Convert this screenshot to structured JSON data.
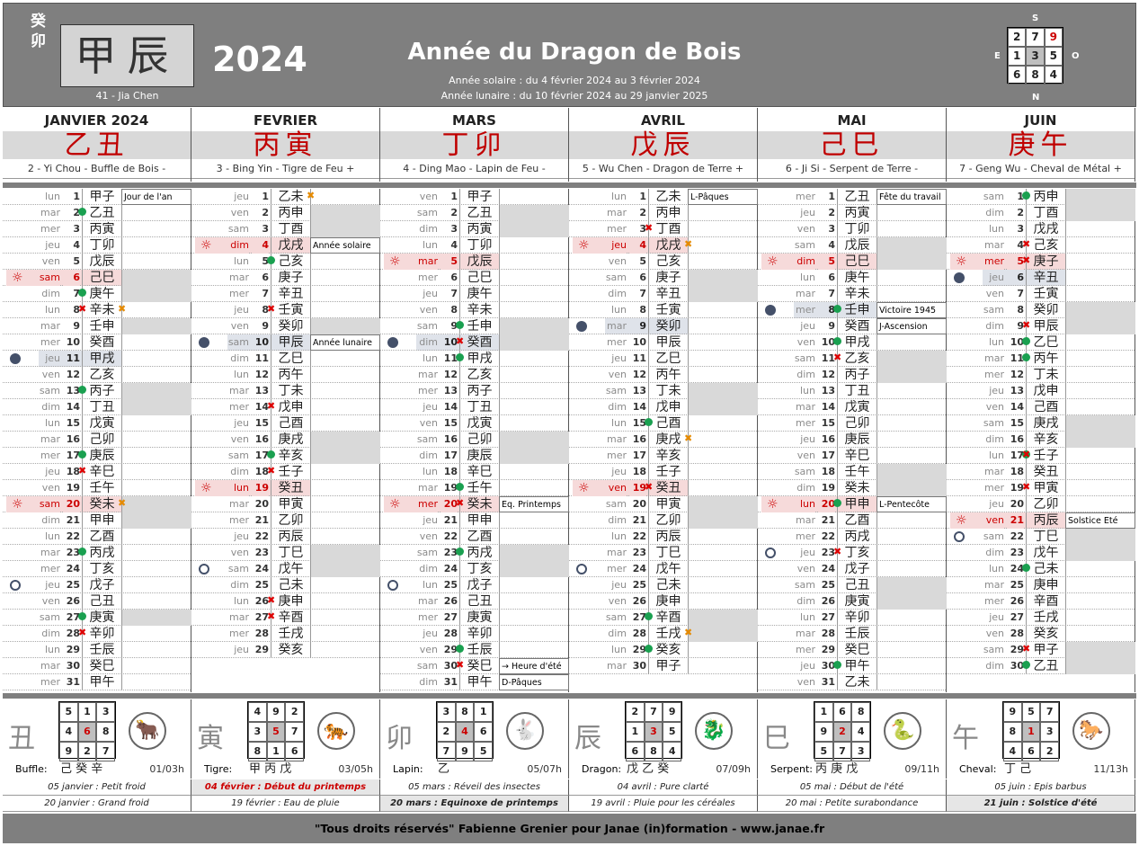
{
  "header": {
    "year_stem": "癸卯",
    "main_ganzhi": "甲辰",
    "main_label": "41 - Jia Chen",
    "year": "2024",
    "title": "Année du Dragon de Bois",
    "solar": "Année solaire : du 4 février 2024 au 3 février 2024",
    "lunar": "Année lunaire : du 10 février 2024 au 29 janvier 2025",
    "compass": {
      "s": "S",
      "n": "N",
      "e": "E",
      "o": "O",
      "grid": [
        "2",
        "7",
        "9",
        "1",
        "3",
        "5",
        "6",
        "8",
        "4"
      ]
    }
  },
  "months": [
    {
      "name": "JANVIER 2024",
      "gz": "乙丑",
      "desc": "2 - Yi Chou - Buffle de Bois -"
    },
    {
      "name": "FEVRIER",
      "gz": "丙寅",
      "desc": "3 - Bing Yin - Tigre de Feu +"
    },
    {
      "name": "MARS",
      "gz": "丁卯",
      "desc": "4 - Ding Mao - Lapin de Feu -"
    },
    {
      "name": "AVRIL",
      "gz": "戊辰",
      "desc": "5 - Wu Chen - Dragon de Terre +"
    },
    {
      "name": "MAI",
      "gz": "己巳",
      "desc": "6 - Ji Si - Serpent de Terre -"
    },
    {
      "name": "JUIN",
      "gz": "庚午",
      "desc": "7 - Geng Wu - Cheval de Métal +"
    }
  ],
  "days": [
    [
      [
        "lun",
        "1",
        "甲子",
        "Jour de l'an"
      ],
      [
        "mar",
        "2",
        "乙丑",
        ""
      ],
      [
        "mer",
        "3",
        "丙寅",
        ""
      ],
      [
        "jeu",
        "4",
        "丁卯",
        ""
      ],
      [
        "ven",
        "5",
        "戊辰",
        ""
      ],
      [
        "sam",
        "6",
        "己巳",
        ""
      ],
      [
        "dim",
        "7",
        "庚午",
        ""
      ],
      [
        "lun",
        "8",
        "辛未",
        ""
      ],
      [
        "mar",
        "9",
        "壬申",
        ""
      ],
      [
        "mer",
        "10",
        "癸酉",
        ""
      ],
      [
        "jeu",
        "11",
        "甲戌",
        ""
      ],
      [
        "ven",
        "12",
        "乙亥",
        ""
      ],
      [
        "sam",
        "13",
        "丙子",
        ""
      ],
      [
        "dim",
        "14",
        "丁丑",
        ""
      ],
      [
        "lun",
        "15",
        "戊寅",
        ""
      ],
      [
        "mar",
        "16",
        "己卯",
        ""
      ],
      [
        "mer",
        "17",
        "庚辰",
        ""
      ],
      [
        "jeu",
        "18",
        "辛巳",
        ""
      ],
      [
        "ven",
        "19",
        "壬午",
        ""
      ],
      [
        "sam",
        "20",
        "癸未",
        ""
      ],
      [
        "dim",
        "21",
        "甲申",
        ""
      ],
      [
        "lun",
        "22",
        "乙酉",
        ""
      ],
      [
        "mar",
        "23",
        "丙戌",
        ""
      ],
      [
        "mer",
        "24",
        "丁亥",
        ""
      ],
      [
        "jeu",
        "25",
        "戊子",
        ""
      ],
      [
        "ven",
        "26",
        "己丑",
        ""
      ],
      [
        "sam",
        "27",
        "庚寅",
        ""
      ],
      [
        "dim",
        "28",
        "辛卯",
        ""
      ],
      [
        "lun",
        "29",
        "壬辰",
        ""
      ],
      [
        "mar",
        "30",
        "癸巳",
        ""
      ],
      [
        "mer",
        "31",
        "甲午",
        ""
      ]
    ],
    [
      [
        "jeu",
        "1",
        "乙未",
        ""
      ],
      [
        "ven",
        "2",
        "丙申",
        ""
      ],
      [
        "sam",
        "3",
        "丁酉",
        ""
      ],
      [
        "dim",
        "4",
        "戊戌",
        "Année solaire"
      ],
      [
        "lun",
        "5",
        "己亥",
        ""
      ],
      [
        "mar",
        "6",
        "庚子",
        ""
      ],
      [
        "mer",
        "7",
        "辛丑",
        ""
      ],
      [
        "jeu",
        "8",
        "壬寅",
        ""
      ],
      [
        "ven",
        "9",
        "癸卯",
        ""
      ],
      [
        "sam",
        "10",
        "甲辰",
        "Année lunaire"
      ],
      [
        "dim",
        "11",
        "乙巳",
        ""
      ],
      [
        "lun",
        "12",
        "丙午",
        ""
      ],
      [
        "mar",
        "13",
        "丁未",
        ""
      ],
      [
        "mer",
        "14",
        "戊申",
        ""
      ],
      [
        "jeu",
        "15",
        "己酉",
        ""
      ],
      [
        "ven",
        "16",
        "庚戌",
        ""
      ],
      [
        "sam",
        "17",
        "辛亥",
        ""
      ],
      [
        "dim",
        "18",
        "壬子",
        ""
      ],
      [
        "lun",
        "19",
        "癸丑",
        ""
      ],
      [
        "mar",
        "20",
        "甲寅",
        ""
      ],
      [
        "mer",
        "21",
        "乙卯",
        ""
      ],
      [
        "jeu",
        "22",
        "丙辰",
        ""
      ],
      [
        "ven",
        "23",
        "丁巳",
        ""
      ],
      [
        "sam",
        "24",
        "戊午",
        ""
      ],
      [
        "dim",
        "25",
        "己未",
        ""
      ],
      [
        "lun",
        "26",
        "庚申",
        ""
      ],
      [
        "mar",
        "27",
        "辛酉",
        ""
      ],
      [
        "mer",
        "28",
        "壬戌",
        ""
      ],
      [
        "jeu",
        "29",
        "癸亥",
        ""
      ]
    ],
    [
      [
        "ven",
        "1",
        "甲子",
        ""
      ],
      [
        "sam",
        "2",
        "乙丑",
        ""
      ],
      [
        "dim",
        "3",
        "丙寅",
        ""
      ],
      [
        "lun",
        "4",
        "丁卯",
        ""
      ],
      [
        "mar",
        "5",
        "戊辰",
        ""
      ],
      [
        "mer",
        "6",
        "己巳",
        ""
      ],
      [
        "jeu",
        "7",
        "庚午",
        ""
      ],
      [
        "ven",
        "8",
        "辛未",
        ""
      ],
      [
        "sam",
        "9",
        "壬申",
        ""
      ],
      [
        "dim",
        "10",
        "癸酉",
        ""
      ],
      [
        "lun",
        "11",
        "甲戌",
        ""
      ],
      [
        "mar",
        "12",
        "乙亥",
        ""
      ],
      [
        "mer",
        "13",
        "丙子",
        ""
      ],
      [
        "jeu",
        "14",
        "丁丑",
        ""
      ],
      [
        "ven",
        "15",
        "戊寅",
        ""
      ],
      [
        "sam",
        "16",
        "己卯",
        ""
      ],
      [
        "dim",
        "17",
        "庚辰",
        ""
      ],
      [
        "lun",
        "18",
        "辛巳",
        ""
      ],
      [
        "mar",
        "19",
        "壬午",
        ""
      ],
      [
        "mer",
        "20",
        "癸未",
        "Eq. Printemps"
      ],
      [
        "jeu",
        "21",
        "甲申",
        ""
      ],
      [
        "ven",
        "22",
        "乙酉",
        ""
      ],
      [
        "sam",
        "23",
        "丙戌",
        ""
      ],
      [
        "dim",
        "24",
        "丁亥",
        ""
      ],
      [
        "lun",
        "25",
        "戊子",
        ""
      ],
      [
        "mar",
        "26",
        "己丑",
        ""
      ],
      [
        "mer",
        "27",
        "庚寅",
        ""
      ],
      [
        "jeu",
        "28",
        "辛卯",
        ""
      ],
      [
        "ven",
        "29",
        "壬辰",
        ""
      ],
      [
        "sam",
        "30",
        "癸巳",
        "→ Heure d'été"
      ],
      [
        "dim",
        "31",
        "甲午",
        "D-Pâques"
      ]
    ],
    [
      [
        "lun",
        "1",
        "乙未",
        "L-Pâques"
      ],
      [
        "mar",
        "2",
        "丙申",
        ""
      ],
      [
        "mer",
        "3",
        "丁酉",
        ""
      ],
      [
        "jeu",
        "4",
        "戊戌",
        ""
      ],
      [
        "ven",
        "5",
        "己亥",
        ""
      ],
      [
        "sam",
        "6",
        "庚子",
        ""
      ],
      [
        "dim",
        "7",
        "辛丑",
        ""
      ],
      [
        "lun",
        "8",
        "壬寅",
        ""
      ],
      [
        "mar",
        "9",
        "癸卯",
        ""
      ],
      [
        "mer",
        "10",
        "甲辰",
        ""
      ],
      [
        "jeu",
        "11",
        "乙巳",
        ""
      ],
      [
        "ven",
        "12",
        "丙午",
        ""
      ],
      [
        "sam",
        "13",
        "丁未",
        ""
      ],
      [
        "dim",
        "14",
        "戊申",
        ""
      ],
      [
        "lun",
        "15",
        "己酉",
        ""
      ],
      [
        "mar",
        "16",
        "庚戌",
        ""
      ],
      [
        "mer",
        "17",
        "辛亥",
        ""
      ],
      [
        "jeu",
        "18",
        "壬子",
        ""
      ],
      [
        "ven",
        "19",
        "癸丑",
        ""
      ],
      [
        "sam",
        "20",
        "甲寅",
        ""
      ],
      [
        "dim",
        "21",
        "乙卯",
        ""
      ],
      [
        "lun",
        "22",
        "丙辰",
        ""
      ],
      [
        "mar",
        "23",
        "丁巳",
        ""
      ],
      [
        "mer",
        "24",
        "戊午",
        ""
      ],
      [
        "jeu",
        "25",
        "己未",
        ""
      ],
      [
        "ven",
        "26",
        "庚申",
        ""
      ],
      [
        "sam",
        "27",
        "辛酉",
        ""
      ],
      [
        "dim",
        "28",
        "壬戌",
        ""
      ],
      [
        "lun",
        "29",
        "癸亥",
        ""
      ],
      [
        "mar",
        "30",
        "甲子",
        ""
      ]
    ],
    [
      [
        "mer",
        "1",
        "乙丑",
        "Fête du travail"
      ],
      [
        "jeu",
        "2",
        "丙寅",
        ""
      ],
      [
        "ven",
        "3",
        "丁卯",
        ""
      ],
      [
        "sam",
        "4",
        "戊辰",
        ""
      ],
      [
        "dim",
        "5",
        "己巳",
        ""
      ],
      [
        "lun",
        "6",
        "庚午",
        ""
      ],
      [
        "mar",
        "7",
        "辛未",
        ""
      ],
      [
        "mer",
        "8",
        "壬申",
        "Victoire 1945"
      ],
      [
        "jeu",
        "9",
        "癸酉",
        "J-Ascension"
      ],
      [
        "ven",
        "10",
        "甲戌",
        ""
      ],
      [
        "sam",
        "11",
        "乙亥",
        ""
      ],
      [
        "dim",
        "12",
        "丙子",
        ""
      ],
      [
        "lun",
        "13",
        "丁丑",
        ""
      ],
      [
        "mar",
        "14",
        "戊寅",
        ""
      ],
      [
        "mer",
        "15",
        "己卯",
        ""
      ],
      [
        "jeu",
        "16",
        "庚辰",
        ""
      ],
      [
        "ven",
        "17",
        "辛巳",
        ""
      ],
      [
        "sam",
        "18",
        "壬午",
        ""
      ],
      [
        "dim",
        "19",
        "癸未",
        ""
      ],
      [
        "lun",
        "20",
        "甲申",
        "L-Pentecôte"
      ],
      [
        "mar",
        "21",
        "乙酉",
        ""
      ],
      [
        "mer",
        "22",
        "丙戌",
        ""
      ],
      [
        "jeu",
        "23",
        "丁亥",
        ""
      ],
      [
        "ven",
        "24",
        "戊子",
        ""
      ],
      [
        "sam",
        "25",
        "己丑",
        ""
      ],
      [
        "dim",
        "26",
        "庚寅",
        ""
      ],
      [
        "lun",
        "27",
        "辛卯",
        ""
      ],
      [
        "mar",
        "28",
        "壬辰",
        ""
      ],
      [
        "mer",
        "29",
        "癸巳",
        ""
      ],
      [
        "jeu",
        "30",
        "甲午",
        ""
      ],
      [
        "ven",
        "31",
        "乙未",
        ""
      ]
    ],
    [
      [
        "sam",
        "1",
        "丙申",
        ""
      ],
      [
        "dim",
        "2",
        "丁酉",
        ""
      ],
      [
        "lun",
        "3",
        "戊戌",
        ""
      ],
      [
        "mar",
        "4",
        "己亥",
        ""
      ],
      [
        "mer",
        "5",
        "庚子",
        ""
      ],
      [
        "jeu",
        "6",
        "辛丑",
        ""
      ],
      [
        "ven",
        "7",
        "壬寅",
        ""
      ],
      [
        "sam",
        "8",
        "癸卯",
        ""
      ],
      [
        "dim",
        "9",
        "甲辰",
        ""
      ],
      [
        "lun",
        "10",
        "乙巳",
        ""
      ],
      [
        "mar",
        "11",
        "丙午",
        ""
      ],
      [
        "mer",
        "12",
        "丁未",
        ""
      ],
      [
        "jeu",
        "13",
        "戊申",
        ""
      ],
      [
        "ven",
        "14",
        "己酉",
        ""
      ],
      [
        "sam",
        "15",
        "庚戌",
        ""
      ],
      [
        "dim",
        "16",
        "辛亥",
        ""
      ],
      [
        "lun",
        "17",
        "壬子",
        ""
      ],
      [
        "mar",
        "18",
        "癸丑",
        ""
      ],
      [
        "mer",
        "19",
        "甲寅",
        ""
      ],
      [
        "jeu",
        "20",
        "乙卯",
        ""
      ],
      [
        "ven",
        "21",
        "丙辰",
        "Solstice Eté"
      ],
      [
        "sam",
        "22",
        "丁巳",
        ""
      ],
      [
        "dim",
        "23",
        "戊午",
        ""
      ],
      [
        "lun",
        "24",
        "己未",
        ""
      ],
      [
        "mar",
        "25",
        "庚申",
        ""
      ],
      [
        "mer",
        "26",
        "辛酉",
        ""
      ],
      [
        "jeu",
        "27",
        "壬戌",
        ""
      ],
      [
        "ven",
        "28",
        "癸亥",
        ""
      ],
      [
        "sam",
        "29",
        "甲子",
        ""
      ],
      [
        "dim",
        "30",
        "乙丑",
        ""
      ]
    ]
  ],
  "bottom": [
    {
      "ch": "丑",
      "grid": [
        "5",
        "1",
        "3",
        "4",
        "6",
        "8",
        "9",
        "2",
        "7"
      ],
      "red": 4,
      "animal_label": "Buffle:",
      "stems": "己 癸 辛",
      "time": "01/03h"
    },
    {
      "ch": "寅",
      "grid": [
        "4",
        "9",
        "2",
        "3",
        "5",
        "7",
        "8",
        "1",
        "6"
      ],
      "red": 4,
      "animal_label": "Tigre:",
      "stems": "甲 丙 戊",
      "time": "03/05h"
    },
    {
      "ch": "卯",
      "grid": [
        "3",
        "8",
        "1",
        "2",
        "4",
        "6",
        "7",
        "9",
        "5"
      ],
      "red": 4,
      "animal_label": "Lapin:",
      "stems": "乙",
      "time": "05/07h"
    },
    {
      "ch": "辰",
      "grid": [
        "2",
        "7",
        "9",
        "1",
        "3",
        "5",
        "6",
        "8",
        "4"
      ],
      "red": 4,
      "animal_label": "Dragon:",
      "stems": "戊 乙 癸",
      "time": "07/09h"
    },
    {
      "ch": "巳",
      "grid": [
        "1",
        "6",
        "8",
        "9",
        "2",
        "4",
        "5",
        "7",
        "3"
      ],
      "red": 4,
      "animal_label": "Serpent:",
      "stems": "丙 庚 戊",
      "time": "09/11h"
    },
    {
      "ch": "午",
      "grid": [
        "9",
        "5",
        "7",
        "8",
        "1",
        "3",
        "4",
        "6",
        "2"
      ],
      "red": 4,
      "animal_label": "Cheval:",
      "stems": "丁 己",
      "time": "11/13h"
    }
  ],
  "terms_row1": [
    "05 janvier : Petit froid",
    "04 février : Début du printemps",
    "05 mars : Réveil des insectes",
    "04 avril : Pure clarté",
    "05 mai : Début de l'été",
    "05 juin : Epis barbus"
  ],
  "terms_row2": [
    "20 janvier : Grand froid",
    "19 février : Eau de pluie",
    "20 mars : Equinoxe de printemps",
    "19 avril : Pluie pour les céréales",
    "20 mai : Petite surabondance",
    "21 juin : Solstice d'été"
  ],
  "footer": "\"Tous droits réservés\" Fabienne Grenier pour Janae (in)formation - www.janae.fr"
}
